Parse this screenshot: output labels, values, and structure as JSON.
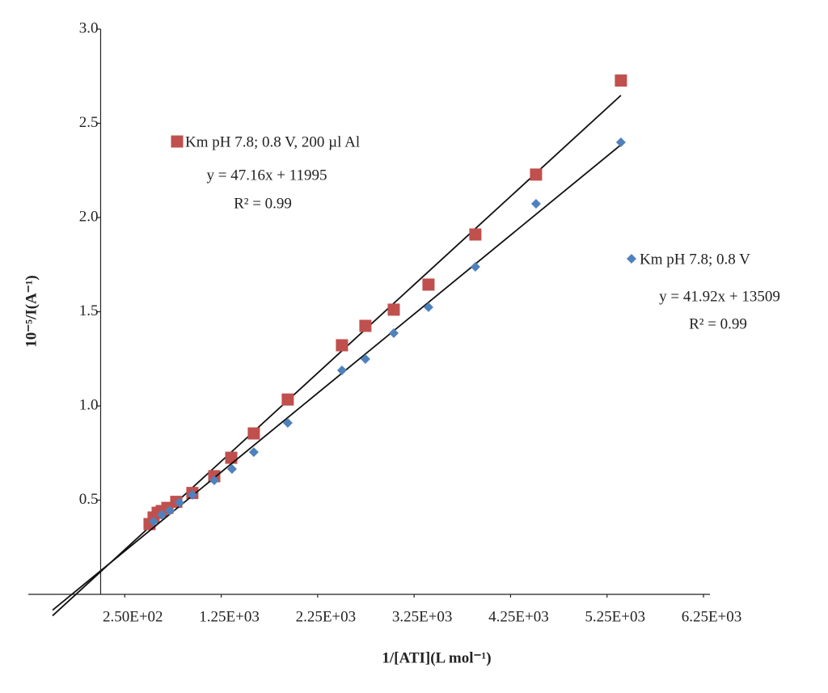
{
  "chart_data": {
    "type": "scatter",
    "xlabel": "1/[ATI](L mol⁻¹)",
    "ylabel": "10⁻⁵/I(A⁻¹)",
    "xlim": [
      -750,
      6250
    ],
    "ylim": [
      0,
      3
    ],
    "xticks": [
      {
        "value": 250,
        "label": "2.50E+02"
      },
      {
        "value": 1250,
        "label": "1.25E+03"
      },
      {
        "value": 2250,
        "label": "2.25E+03"
      },
      {
        "value": 3250,
        "label": "3.25E+03"
      },
      {
        "value": 4250,
        "label": "4.25E+03"
      },
      {
        "value": 5250,
        "label": "5.25E+03"
      },
      {
        "value": 6250,
        "label": "6.25E+03"
      }
    ],
    "yticks": [
      0.5,
      {
        "value": 1,
        "label": "1.0"
      },
      1.5,
      {
        "value": 2,
        "label": "2.0"
      },
      2.5,
      {
        "value": 3,
        "label": "3.0"
      }
    ],
    "grid": false,
    "series": [
      {
        "name": "Km pH 7.8; 0.8 V, 200 µl Al",
        "color": "#c0504d",
        "marker": "square",
        "equation": "y = 47.16x + 11995",
        "r2": "R² = 0.99",
        "x": [
          507,
          549,
          591,
          633,
          692,
          784,
          951,
          1178,
          1354,
          1588,
          1940,
          2502,
          2745,
          3039,
          3399,
          3885,
          4514,
          5394
        ],
        "values": [
          0.373,
          0.408,
          0.433,
          0.442,
          0.459,
          0.491,
          0.538,
          0.627,
          0.725,
          0.854,
          1.034,
          1.322,
          1.425,
          1.511,
          1.644,
          1.91,
          2.228,
          2.727
        ]
      },
      {
        "name": "Km pH 7.8; 0.8 V",
        "color": "#4f81bd",
        "marker": "diamond",
        "equation": "y = 41.92x + 13509",
        "r2": "R² = 0.99",
        "x": [
          549,
          633,
          717,
          817,
          951,
          1178,
          1362,
          1588,
          1940,
          2502,
          2745,
          3039,
          3399,
          3885,
          4514,
          5394
        ],
        "values": [
          0.386,
          0.423,
          0.444,
          0.487,
          0.528,
          0.605,
          0.665,
          0.755,
          0.91,
          1.189,
          1.249,
          1.386,
          1.524,
          1.738,
          2.073,
          2.399
        ]
      }
    ]
  }
}
